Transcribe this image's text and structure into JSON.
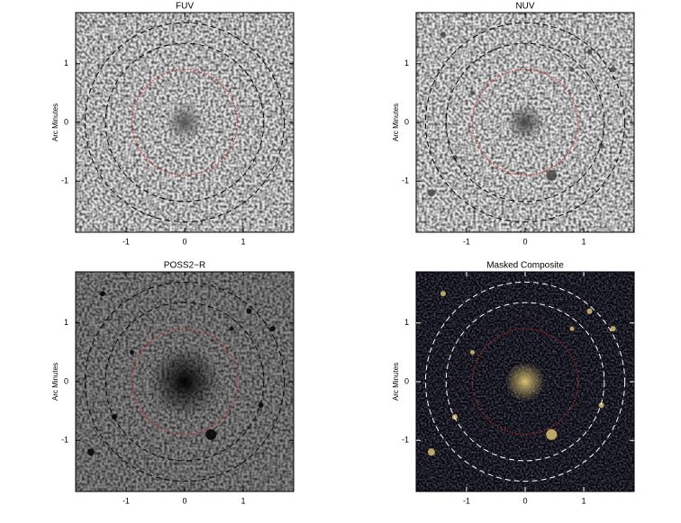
{
  "chart_data": [
    {
      "type": "image",
      "title": "FUV",
      "ylabel": "Arc Minutes",
      "xlim": [
        -1.86,
        1.86
      ],
      "ylim": [
        -1.87,
        1.87
      ],
      "xticks": [
        -1,
        0,
        1
      ],
      "yticks": [
        -1,
        0,
        1
      ],
      "background": "#e4e4e4",
      "color": "#555555",
      "circles": [
        {
          "radius": 0.9,
          "color": "#d03030",
          "style": "dotted"
        },
        {
          "radius": 1.35,
          "color": "#000000",
          "style": "dashed"
        },
        {
          "radius": 1.7,
          "color": "#000000",
          "style": "dashed"
        }
      ]
    },
    {
      "type": "image",
      "title": "NUV",
      "ylabel": "Arc Minutes",
      "xlim": [
        -1.86,
        1.86
      ],
      "ylim": [
        -1.87,
        1.87
      ],
      "xticks": [
        -1,
        0,
        1
      ],
      "yticks": [
        -1,
        0,
        1
      ],
      "background": "#e8e8e8",
      "color": "#444444",
      "circles": [
        {
          "radius": 0.9,
          "color": "#d03030",
          "style": "dotted"
        },
        {
          "radius": 1.35,
          "color": "#000000",
          "style": "dashed"
        },
        {
          "radius": 1.7,
          "color": "#000000",
          "style": "dashed"
        }
      ]
    },
    {
      "type": "image",
      "title": "POSS2−R",
      "ylabel": "Arc Minutes",
      "xlim": [
        -1.86,
        1.86
      ],
      "ylim": [
        -1.87,
        1.87
      ],
      "xticks": [
        -1,
        0,
        1
      ],
      "yticks": [
        -1,
        0,
        1
      ],
      "background": "#8a8a8a",
      "color": "#000000",
      "circles": [
        {
          "radius": 0.9,
          "color": "#d03030",
          "style": "dotted"
        },
        {
          "radius": 1.35,
          "color": "#000000",
          "style": "dashed"
        },
        {
          "radius": 1.7,
          "color": "#000000",
          "style": "dashed"
        }
      ]
    },
    {
      "type": "image",
      "title": "Masked Composite",
      "ylabel": "Arc Minutes",
      "xlim": [
        -1.86,
        1.86
      ],
      "ylim": [
        -1.87,
        1.87
      ],
      "xticks": [
        -1,
        0,
        1
      ],
      "yticks": [
        -1,
        0,
        1
      ],
      "background": "#050508",
      "color": "#d8c070",
      "circles": [
        {
          "radius": 0.9,
          "color": "#b02828",
          "style": "dotted"
        },
        {
          "radius": 1.35,
          "color": "#ffffff",
          "style": "dashed"
        },
        {
          "radius": 1.7,
          "color": "#ffffff",
          "style": "dashed"
        }
      ]
    }
  ]
}
